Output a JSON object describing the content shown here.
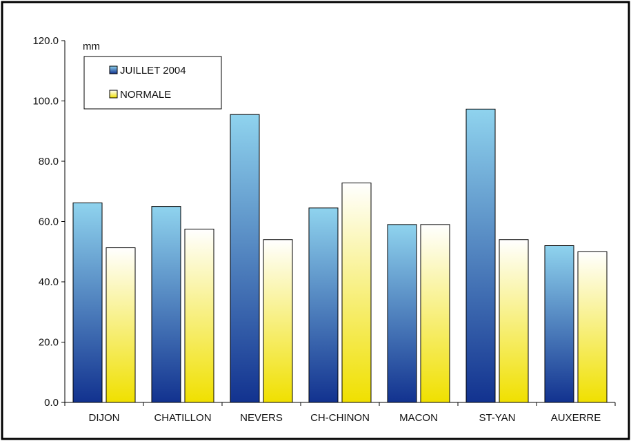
{
  "chart_data": {
    "type": "bar",
    "unit_label": "mm",
    "categories": [
      "DIJON",
      "CHATILLON",
      "NEVERS",
      "CH-CHINON",
      "MACON",
      "ST-YAN",
      "AUXERRE"
    ],
    "series": [
      {
        "name": "JUILLET 2004",
        "values": [
          66.2,
          65.0,
          95.5,
          64.5,
          59.0,
          97.3,
          52.0
        ]
      },
      {
        "name": "NORMALE",
        "values": [
          51.3,
          57.5,
          54.0,
          72.8,
          59.0,
          54.0,
          50.0
        ]
      }
    ],
    "ylim": [
      0,
      120
    ],
    "yticks": [
      "0.0",
      "20.0",
      "40.0",
      "60.0",
      "80.0",
      "100.0",
      "120.0"
    ],
    "grid": false,
    "legend_position": "top-left",
    "colors": {
      "series1_top": "#8fd3ee",
      "series1_bottom": "#12328f",
      "series2_top": "#ffffff",
      "series2_bottom": "#f0e000",
      "frame": "#000000"
    }
  }
}
